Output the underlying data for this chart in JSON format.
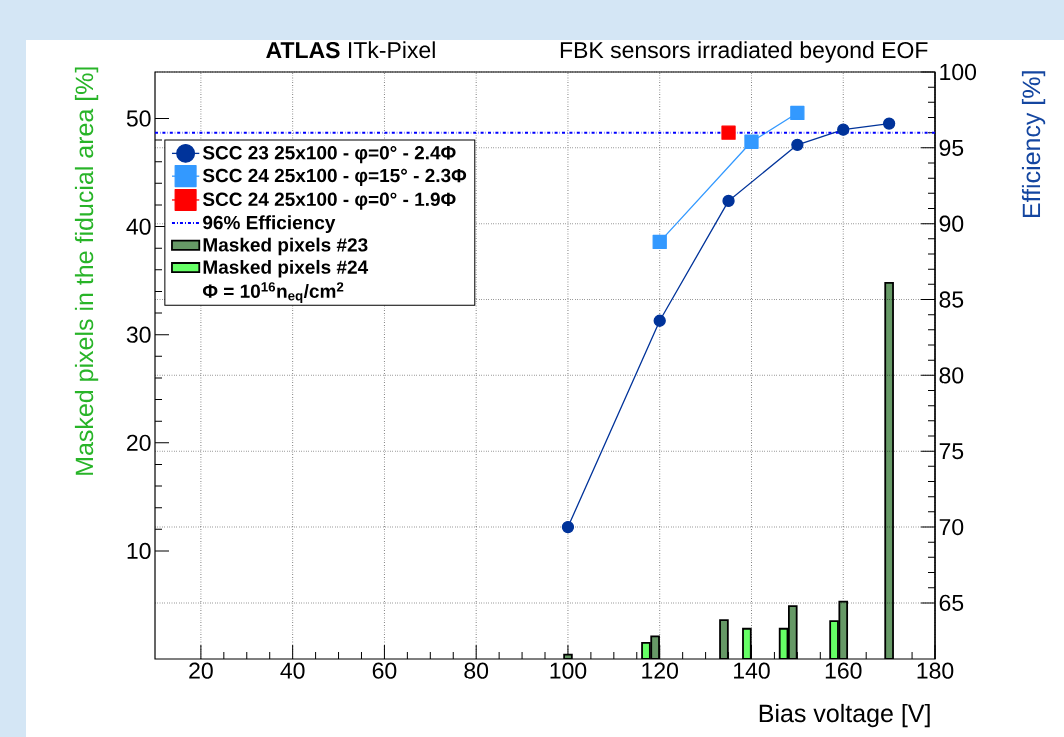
{
  "chart_data": {
    "type": "line",
    "title": "**ATLAS** ITk-Pixel",
    "subtitle": "FBK sensors irradiated beyond EOF",
    "xlabel": "Bias voltage [V]",
    "ylabel": "Masked pixels in the fiducial area [%]",
    "y2label": "Efficiency [%]",
    "xlim": [
      10,
      180
    ],
    "xticks": [
      20,
      40,
      60,
      80,
      100,
      120,
      140,
      160,
      180
    ],
    "ylim": [
      0,
      54.3
    ],
    "yticks": [
      10,
      20,
      30,
      40,
      50
    ],
    "y2lim": [
      61.3,
      100
    ],
    "y2ticks": [
      65,
      70,
      75,
      80,
      85,
      90,
      95,
      100
    ],
    "grid": true,
    "legend": "top left",
    "series": [
      {
        "name": "SCC 23 25x100 - φ=0° - 2.4Φ",
        "axis": "y2",
        "marker": "circle",
        "color": "#00339a",
        "x": [
          100,
          120,
          135,
          150,
          160,
          170
        ],
        "values": [
          70.0,
          83.6,
          91.5,
          95.2,
          96.2,
          96.6
        ]
      },
      {
        "name": "SCC 24 25x100 - φ=15° - 2.3Φ",
        "axis": "y2",
        "marker": "square",
        "color": "#3399ff",
        "x": [
          120,
          140,
          150
        ],
        "values": [
          88.8,
          95.4,
          97.3
        ]
      },
      {
        "name": "SCC 24 25x100 - φ=0° - 1.9Φ",
        "axis": "y2",
        "marker": "square",
        "color": "#ff0000",
        "x": [
          135
        ],
        "values": [
          96.0
        ]
      },
      {
        "name": "Masked pixels #23",
        "type": "bar",
        "color": "#669966",
        "x": [
          100,
          119,
          134,
          149,
          160,
          170
        ],
        "values": [
          0.4,
          2.1,
          3.6,
          4.9,
          5.3,
          34.8
        ]
      },
      {
        "name": "Masked pixels #24",
        "type": "bar",
        "color": "#66ff66",
        "x": [
          117,
          139,
          147,
          158
        ],
        "values": [
          1.5,
          2.8,
          2.8,
          3.5
        ]
      }
    ],
    "ref_lines": [
      {
        "axis": "y2",
        "value": 96,
        "label": "96% Efficiency",
        "color": "#0000ff",
        "line_style": "dashdot"
      }
    ],
    "annotations": [
      "Φ = 10$^{16}$n$_{eq}$/cm$^{2}$"
    ]
  }
}
